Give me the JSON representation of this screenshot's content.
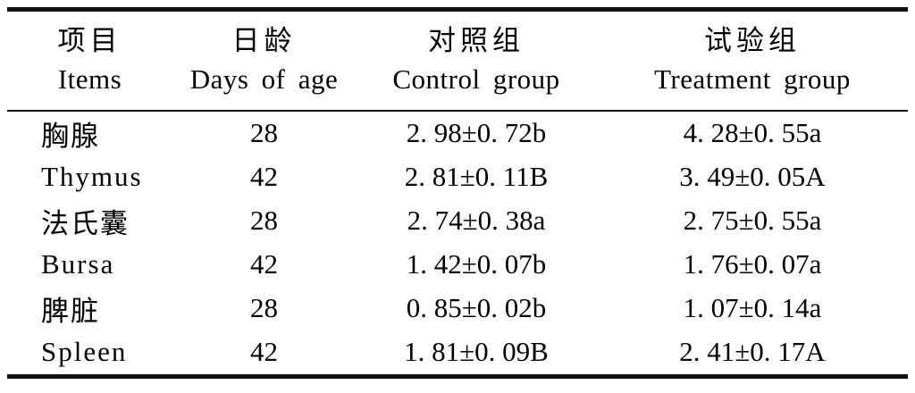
{
  "table": {
    "columns": [
      {
        "zh": "项目",
        "en": "Items"
      },
      {
        "zh": "日龄",
        "en": "Days of age"
      },
      {
        "zh": "对照组",
        "en": "Control group"
      },
      {
        "zh": "试验组",
        "en": "Treatment group"
      }
    ],
    "rows": [
      {
        "item": "胸腺",
        "age": "28",
        "control": "2. 98±0. 72b",
        "treatment": "4. 28±0. 55a"
      },
      {
        "item": "Thymus",
        "age": "42",
        "control": "2. 81±0. 11B",
        "treatment": "3. 49±0. 05A"
      },
      {
        "item": "法氏囊",
        "age": "28",
        "control": "2. 74±0. 38a",
        "treatment": "2. 75±0. 55a"
      },
      {
        "item": "Bursa",
        "age": "42",
        "control": "1. 42±0. 07b",
        "treatment": "1. 76±0. 07a"
      },
      {
        "item": "脾脏",
        "age": "28",
        "control": "0. 85±0. 02b",
        "treatment": "1. 07±0. 14a"
      },
      {
        "item": "Spleen",
        "age": "42",
        "control": "1. 81±0. 09B",
        "treatment": "2. 41±0. 17A"
      }
    ],
    "colors": {
      "text": "#000000",
      "background": "#ffffff",
      "rule": "#111111"
    }
  }
}
